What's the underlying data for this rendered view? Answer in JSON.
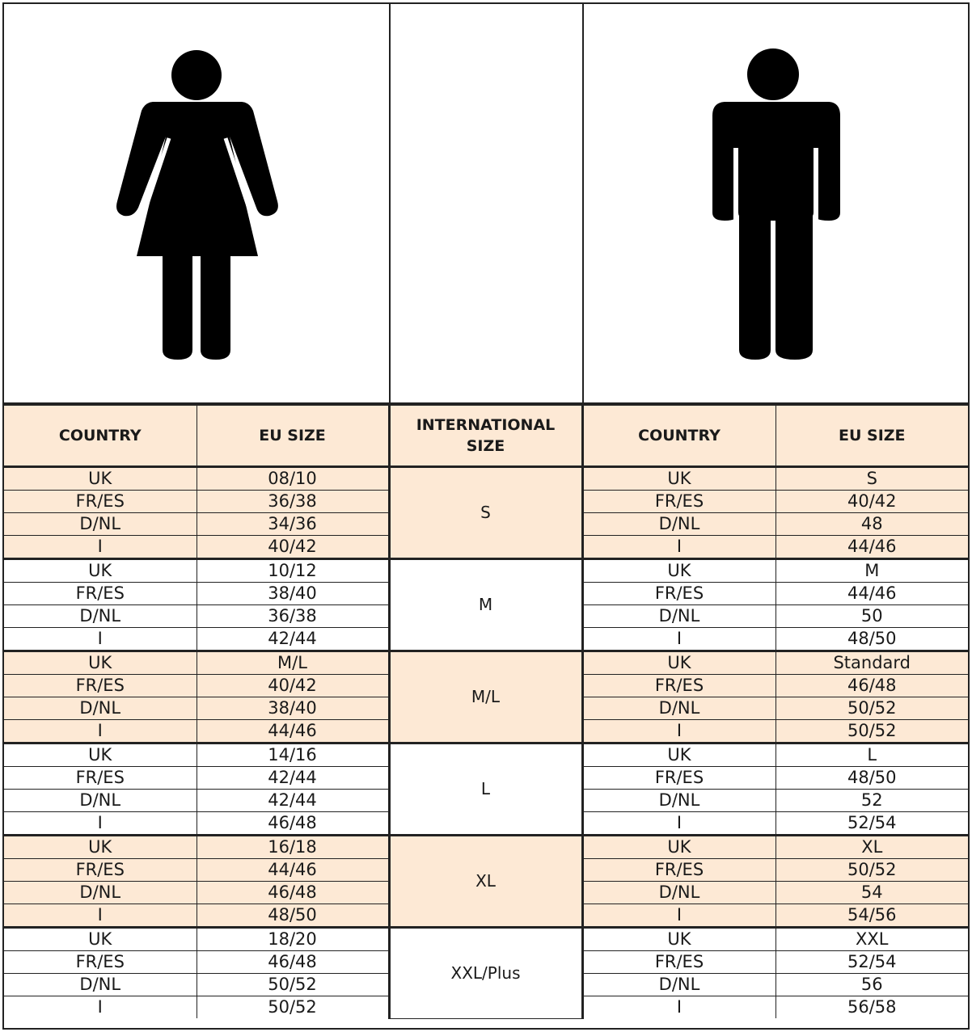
{
  "colors": {
    "peach": "#fde9d5",
    "border": "#222222",
    "icon": "#000000"
  },
  "icons": {
    "women": "woman-figure-icon",
    "men": "man-figure-icon"
  },
  "headers": {
    "women_country": "COUNTRY",
    "women_eu": "EU SIZE",
    "international": "INTERNATIONAL SIZE",
    "men_country": "COUNTRY",
    "men_eu": "EU SIZE"
  },
  "groups": [
    {
      "intl": "S",
      "shaded": true,
      "women": [
        [
          "UK",
          "08/10"
        ],
        [
          "FR/ES",
          "36/38"
        ],
        [
          "D/NL",
          "34/36"
        ],
        [
          "I",
          "40/42"
        ]
      ],
      "men": [
        [
          "UK",
          "S"
        ],
        [
          "FR/ES",
          "40/42"
        ],
        [
          "D/NL",
          "48"
        ],
        [
          "I",
          "44/46"
        ]
      ]
    },
    {
      "intl": "M",
      "shaded": false,
      "women": [
        [
          "UK",
          "10/12"
        ],
        [
          "FR/ES",
          "38/40"
        ],
        [
          "D/NL",
          "36/38"
        ],
        [
          "I",
          "42/44"
        ]
      ],
      "men": [
        [
          "UK",
          "M"
        ],
        [
          "FR/ES",
          "44/46"
        ],
        [
          "D/NL",
          "50"
        ],
        [
          "I",
          "48/50"
        ]
      ]
    },
    {
      "intl": "M/L",
      "shaded": true,
      "women": [
        [
          "UK",
          "M/L"
        ],
        [
          "FR/ES",
          "40/42"
        ],
        [
          "D/NL",
          "38/40"
        ],
        [
          "I",
          "44/46"
        ]
      ],
      "men": [
        [
          "UK",
          "Standard"
        ],
        [
          "FR/ES",
          "46/48"
        ],
        [
          "D/NL",
          "50/52"
        ],
        [
          "I",
          "50/52"
        ]
      ]
    },
    {
      "intl": "L",
      "shaded": false,
      "women": [
        [
          "UK",
          "14/16"
        ],
        [
          "FR/ES",
          "42/44"
        ],
        [
          "D/NL",
          "42/44"
        ],
        [
          "I",
          "46/48"
        ]
      ],
      "men": [
        [
          "UK",
          "L"
        ],
        [
          "FR/ES",
          "48/50"
        ],
        [
          "D/NL",
          "52"
        ],
        [
          "I",
          "52/54"
        ]
      ]
    },
    {
      "intl": "XL",
      "shaded": true,
      "women": [
        [
          "UK",
          "16/18"
        ],
        [
          "FR/ES",
          "44/46"
        ],
        [
          "D/NL",
          "46/48"
        ],
        [
          "I",
          "48/50"
        ]
      ],
      "men": [
        [
          "UK",
          "XL"
        ],
        [
          "FR/ES",
          "50/52"
        ],
        [
          "D/NL",
          "54"
        ],
        [
          "I",
          "54/56"
        ]
      ]
    },
    {
      "intl": "XXL/Plus",
      "shaded": false,
      "women": [
        [
          "UK",
          "18/20"
        ],
        [
          "FR/ES",
          "46/48"
        ],
        [
          "D/NL",
          "50/52"
        ],
        [
          "I",
          "50/52"
        ]
      ],
      "men": [
        [
          "UK",
          "XXL"
        ],
        [
          "FR/ES",
          "52/54"
        ],
        [
          "D/NL",
          "56"
        ],
        [
          "I",
          "56/58"
        ]
      ]
    }
  ]
}
